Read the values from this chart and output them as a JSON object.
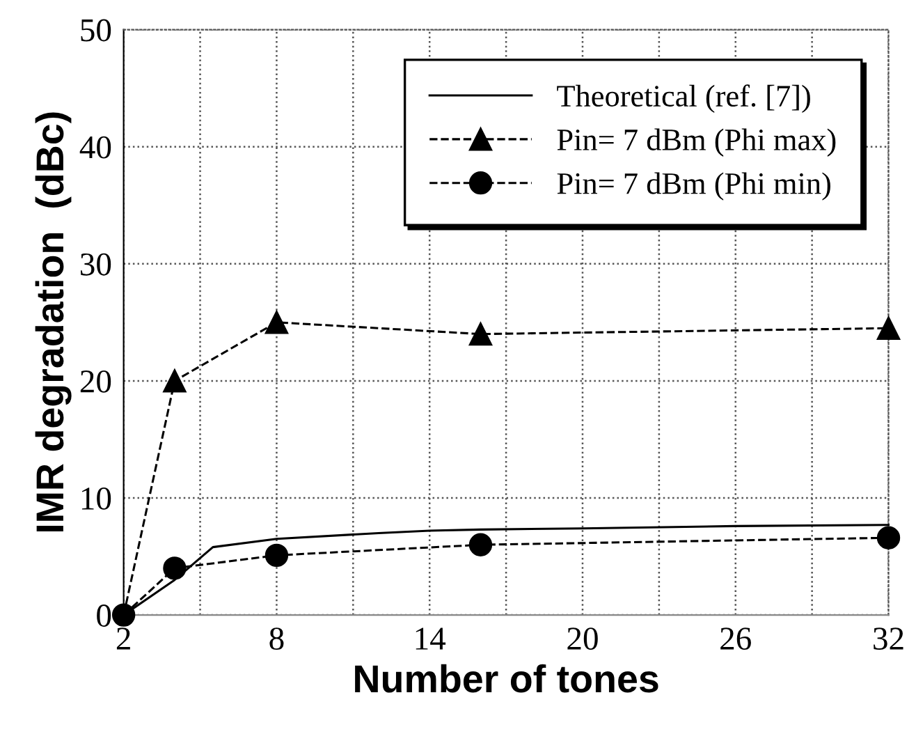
{
  "chart_data": {
    "type": "line",
    "xlabel": "Number of tones",
    "ylabel": "IMR degradation  (dBc)",
    "xlim": [
      2,
      32
    ],
    "ylim": [
      0,
      50
    ],
    "xticks": [
      2,
      {
        "value": 5,
        "label": null
      },
      8,
      {
        "value": 11,
        "label": null
      },
      14,
      {
        "value": 17,
        "label": null
      },
      20,
      {
        "value": 23,
        "label": null
      },
      26,
      {
        "value": 29,
        "label": null
      },
      32
    ],
    "yticks": [
      0,
      10,
      20,
      30,
      40,
      50
    ],
    "grid": true,
    "legend": "top right",
    "series": [
      {
        "name": "Theoretical (ref. [7])",
        "color": "#000000",
        "line_style": "solid",
        "marker": "none",
        "x": [
          2,
          4,
          5.5,
          8,
          12,
          14,
          16,
          20,
          26,
          32
        ],
        "values": [
          0,
          3,
          5.8,
          6.5,
          7.0,
          7.2,
          7.3,
          7.4,
          7.6,
          7.7
        ]
      },
      {
        "name": "Pin= 7 dBm (Phi max)",
        "color": "#000000",
        "line_style": "dashed",
        "marker": "triangle",
        "x": [
          2,
          4,
          8,
          16,
          32
        ],
        "values": [
          0,
          20,
          25,
          24,
          24.5
        ]
      },
      {
        "name": "Pin= 7 dBm (Phi min)",
        "color": "#000000",
        "line_style": "dashed",
        "marker": "circle",
        "x": [
          2,
          4,
          8,
          16,
          32
        ],
        "values": [
          0,
          4,
          5.1,
          6,
          6.6
        ]
      }
    ]
  }
}
